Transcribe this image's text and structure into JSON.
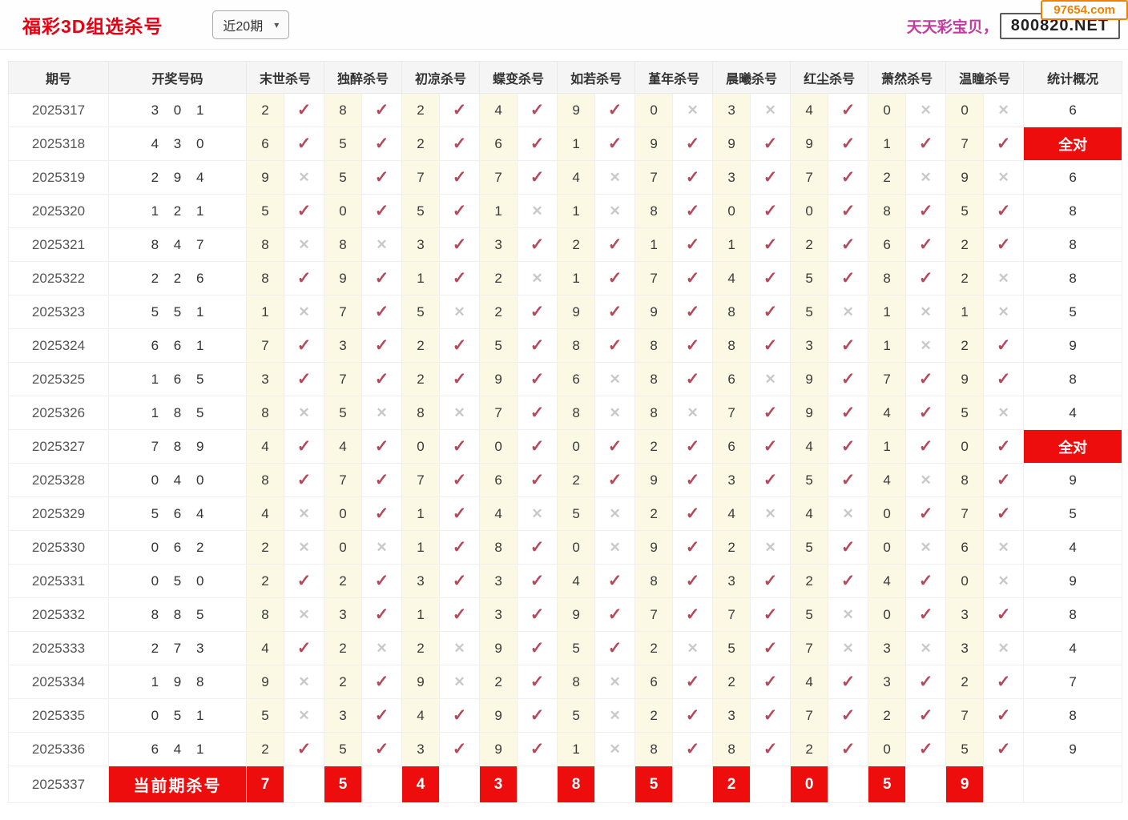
{
  "header": {
    "title": "福彩3D组选杀号",
    "range_select_value": "近20期",
    "promo_text": "天天彩宝贝，",
    "site_badge": "800820.NET",
    "corner_badge": "97654.com"
  },
  "icons": {
    "dropdown_arrow": "▾",
    "check": "✓",
    "cross": "✕"
  },
  "colors": {
    "title_red": "#e60012",
    "block_red": "#ee0d0d",
    "check_rose": "#b5495b",
    "cross_gray": "#c8c8c8",
    "cell_yellow": "#fbf8e3",
    "promo_pink": "#c13ba0",
    "corner_orange": "#f08200"
  },
  "table": {
    "col_headers": [
      "期号",
      "开奖号码",
      "末世杀号",
      "独醉杀号",
      "初凉杀号",
      "蝶变杀号",
      "如若杀号",
      "堇年杀号",
      "晨曦杀号",
      "红尘杀号",
      "萧然杀号",
      "温瞳杀号",
      "统计概况"
    ],
    "all_correct_label": "全对",
    "rows": [
      {
        "period": "2025317",
        "draw": "301",
        "kills": [
          "2+",
          "8+",
          "2+",
          "4+",
          "9+",
          "0-",
          "3-",
          "4+",
          "0-",
          "0-"
        ],
        "stat": "6"
      },
      {
        "period": "2025318",
        "draw": "430",
        "kills": [
          "6+",
          "5+",
          "2+",
          "6+",
          "1+",
          "9+",
          "9+",
          "9+",
          "1+",
          "7+"
        ],
        "stat": "全对"
      },
      {
        "period": "2025319",
        "draw": "294",
        "kills": [
          "9-",
          "5+",
          "7+",
          "7+",
          "4-",
          "7+",
          "3+",
          "7+",
          "2-",
          "9-"
        ],
        "stat": "6"
      },
      {
        "period": "2025320",
        "draw": "121",
        "kills": [
          "5+",
          "0+",
          "5+",
          "1-",
          "1-",
          "8+",
          "0+",
          "0+",
          "8+",
          "5+"
        ],
        "stat": "8"
      },
      {
        "period": "2025321",
        "draw": "847",
        "kills": [
          "8-",
          "8-",
          "3+",
          "3+",
          "2+",
          "1+",
          "1+",
          "2+",
          "6+",
          "2+"
        ],
        "stat": "8"
      },
      {
        "period": "2025322",
        "draw": "226",
        "kills": [
          "8+",
          "9+",
          "1+",
          "2-",
          "1+",
          "7+",
          "4+",
          "5+",
          "8+",
          "2-"
        ],
        "stat": "8"
      },
      {
        "period": "2025323",
        "draw": "551",
        "kills": [
          "1-",
          "7+",
          "5-",
          "2+",
          "9+",
          "9+",
          "8+",
          "5-",
          "1-",
          "1-"
        ],
        "stat": "5"
      },
      {
        "period": "2025324",
        "draw": "661",
        "kills": [
          "7+",
          "3+",
          "2+",
          "5+",
          "8+",
          "8+",
          "8+",
          "3+",
          "1-",
          "2+"
        ],
        "stat": "9"
      },
      {
        "period": "2025325",
        "draw": "165",
        "kills": [
          "3+",
          "7+",
          "2+",
          "9+",
          "6-",
          "8+",
          "6-",
          "9+",
          "7+",
          "9+"
        ],
        "stat": "8"
      },
      {
        "period": "2025326",
        "draw": "185",
        "kills": [
          "8-",
          "5-",
          "8-",
          "7+",
          "8-",
          "8-",
          "7+",
          "9+",
          "4+",
          "5-"
        ],
        "stat": "4"
      },
      {
        "period": "2025327",
        "draw": "789",
        "kills": [
          "4+",
          "4+",
          "0+",
          "0+",
          "0+",
          "2+",
          "6+",
          "4+",
          "1+",
          "0+"
        ],
        "stat": "全对"
      },
      {
        "period": "2025328",
        "draw": "040",
        "kills": [
          "8+",
          "7+",
          "7+",
          "6+",
          "2+",
          "9+",
          "3+",
          "5+",
          "4-",
          "8+"
        ],
        "stat": "9"
      },
      {
        "period": "2025329",
        "draw": "564",
        "kills": [
          "4-",
          "0+",
          "1+",
          "4-",
          "5-",
          "2+",
          "4-",
          "4-",
          "0+",
          "7+"
        ],
        "stat": "5"
      },
      {
        "period": "2025330",
        "draw": "062",
        "kills": [
          "2-",
          "0-",
          "1+",
          "8+",
          "0-",
          "9+",
          "2-",
          "5+",
          "0-",
          "6-"
        ],
        "stat": "4"
      },
      {
        "period": "2025331",
        "draw": "050",
        "kills": [
          "2+",
          "2+",
          "3+",
          "3+",
          "4+",
          "8+",
          "3+",
          "2+",
          "4+",
          "0-"
        ],
        "stat": "9"
      },
      {
        "period": "2025332",
        "draw": "885",
        "kills": [
          "8-",
          "3+",
          "1+",
          "3+",
          "9+",
          "7+",
          "7+",
          "5-",
          "0+",
          "3+"
        ],
        "stat": "8"
      },
      {
        "period": "2025333",
        "draw": "273",
        "kills": [
          "4+",
          "2-",
          "2-",
          "9+",
          "5+",
          "2-",
          "5+",
          "7-",
          "3-",
          "3-"
        ],
        "stat": "4"
      },
      {
        "period": "2025334",
        "draw": "198",
        "kills": [
          "9-",
          "2+",
          "9-",
          "2+",
          "8-",
          "6+",
          "2+",
          "4+",
          "3+",
          "2+"
        ],
        "stat": "7"
      },
      {
        "period": "2025335",
        "draw": "051",
        "kills": [
          "5-",
          "3+",
          "4+",
          "9+",
          "5-",
          "2+",
          "3+",
          "7+",
          "2+",
          "7+"
        ],
        "stat": "8"
      },
      {
        "period": "2025336",
        "draw": "641",
        "kills": [
          "2+",
          "5+",
          "3+",
          "9+",
          "1-",
          "8+",
          "8+",
          "2+",
          "0+",
          "5+"
        ],
        "stat": "9"
      }
    ],
    "current_row": {
      "period": "2025337",
      "label": "当前期杀号",
      "kills": [
        "7",
        "5",
        "4",
        "3",
        "8",
        "5",
        "2",
        "0",
        "5",
        "9"
      ],
      "stat": ""
    }
  }
}
